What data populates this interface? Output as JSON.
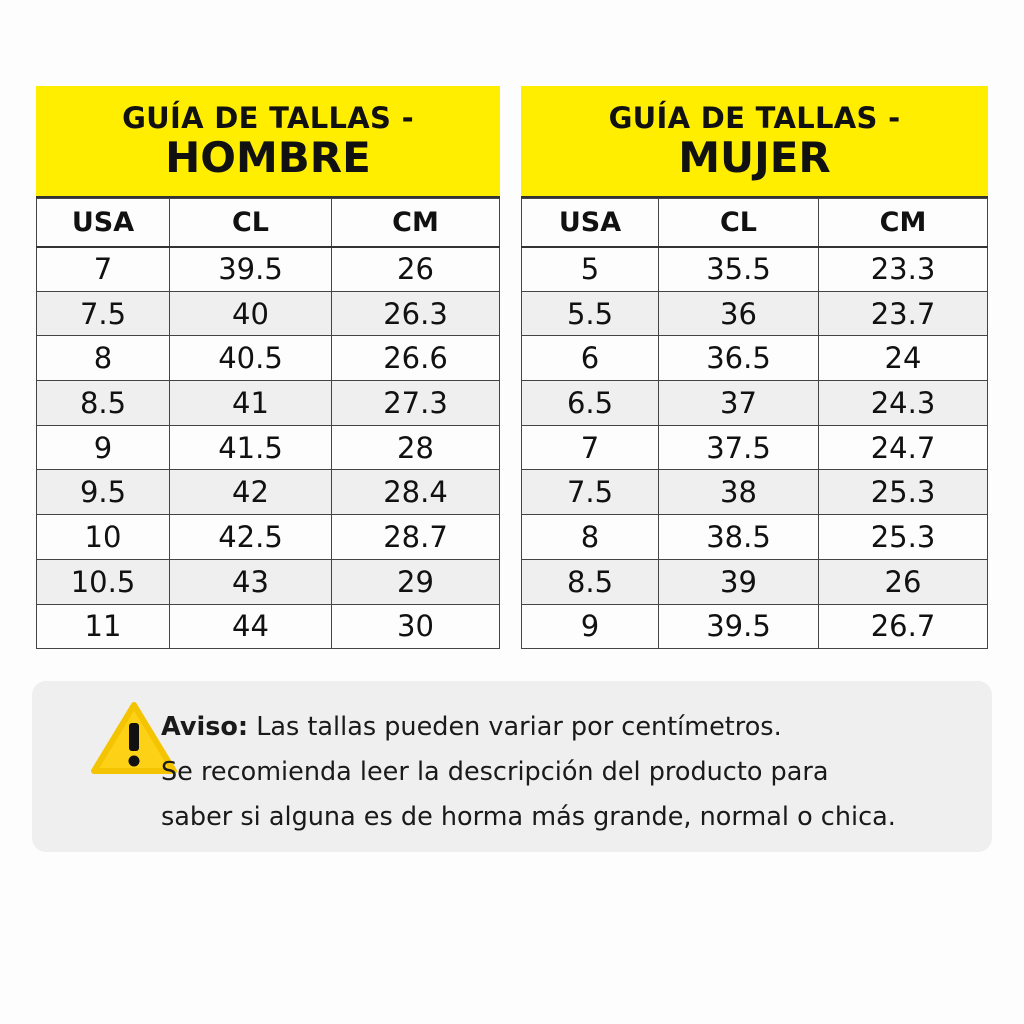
{
  "tables": [
    {
      "title_line1": "GUÍA DE TALLAS -",
      "title_line2": "HOMBRE",
      "columns": [
        "USA",
        "CL",
        "CM"
      ],
      "rows": [
        [
          "7",
          "39.5",
          "26"
        ],
        [
          "7.5",
          "40",
          "26.3"
        ],
        [
          "8",
          "40.5",
          "26.6"
        ],
        [
          "8.5",
          "41",
          "27.3"
        ],
        [
          "9",
          "41.5",
          "28"
        ],
        [
          "9.5",
          "42",
          "28.4"
        ],
        [
          "10",
          "42.5",
          "28.7"
        ],
        [
          "10.5",
          "43",
          "29"
        ],
        [
          "11",
          "44",
          "30"
        ]
      ]
    },
    {
      "title_line1": "GUÍA DE TALLAS -",
      "title_line2": "MUJER",
      "columns": [
        "USA",
        "CL",
        "CM"
      ],
      "rows": [
        [
          "5",
          "35.5",
          "23.3"
        ],
        [
          "5.5",
          "36",
          "23.7"
        ],
        [
          "6",
          "36.5",
          "24"
        ],
        [
          "6.5",
          "37",
          "24.3"
        ],
        [
          "7",
          "37.5",
          "24.7"
        ],
        [
          "7.5",
          "38",
          "25.3"
        ],
        [
          "8",
          "38.5",
          "25.3"
        ],
        [
          "8.5",
          "39",
          "26"
        ],
        [
          "9",
          "39.5",
          "26.7"
        ]
      ]
    }
  ],
  "notice": {
    "icon": "warning-triangle-icon",
    "label": "Aviso:",
    "line1": "Las tallas pueden variar por centímetros.",
    "line2": "Se recomienda leer la descripción del producto para",
    "line3": "saber si alguna es de horma más grande, normal o chica."
  },
  "colors": {
    "header": "#ffee00",
    "alt_row": "#efefef",
    "notice_bg": "#efeff0",
    "warning": "#fcd116"
  }
}
